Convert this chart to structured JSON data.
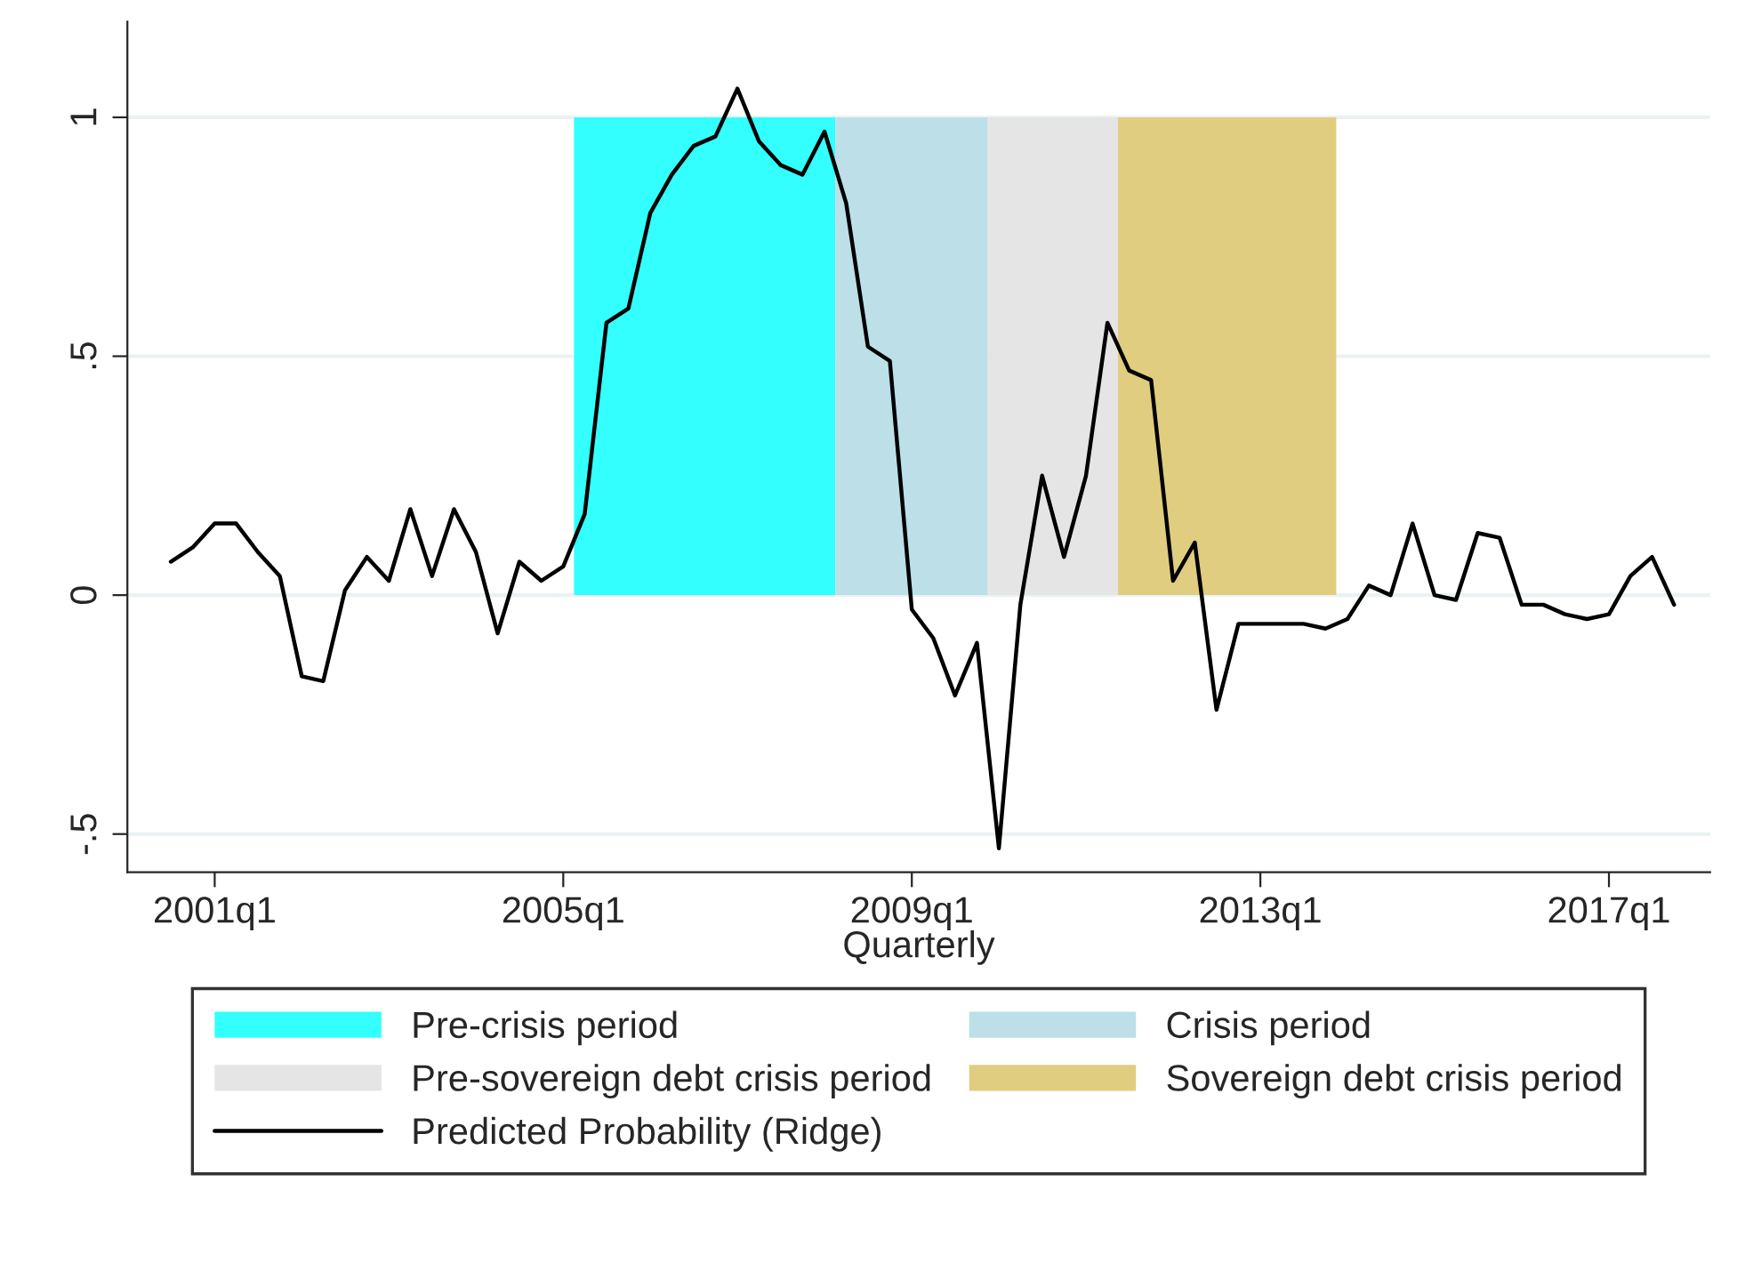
{
  "chart_data": {
    "type": "line",
    "xlabel": "Quarterly",
    "xlim": [
      "2000-01",
      "2018-03"
    ],
    "xticks": [
      {
        "value": "2001-01",
        "label": "2001q1"
      },
      {
        "value": "2005-01",
        "label": "2005q1"
      },
      {
        "value": "2009-01",
        "label": "2009q1"
      },
      {
        "value": "2013-01",
        "label": "2013q1"
      },
      {
        "value": "2017-01",
        "label": "2017q1"
      }
    ],
    "ylim": [
      -0.58,
      1.2
    ],
    "yticks": [
      {
        "value": -0.5,
        "label": "-.5"
      },
      0,
      {
        "value": 0.5,
        "label": ".5"
      },
      1
    ],
    "grid": "y",
    "legend": "bottom",
    "series": [
      {
        "name": "Pre-crisis period",
        "type": "area",
        "color": "#33ffff",
        "x": [
          "2005-02-15",
          "2008-02-15"
        ],
        "values": [
          1,
          1
        ]
      },
      {
        "name": "Crisis period",
        "type": "area",
        "color": "#bcdfe8",
        "x": [
          "2008-02-15",
          "2009-11-15"
        ],
        "values": [
          1,
          1
        ]
      },
      {
        "name": "Pre-sovereign debt crisis period",
        "type": "area",
        "color": "#e5e5e5",
        "x": [
          "2009-11-15",
          "2011-05-15"
        ],
        "values": [
          1,
          1
        ]
      },
      {
        "name": "Sovereign debt crisis period",
        "type": "area",
        "color": "#e0cd80",
        "x": [
          "2011-05-15",
          "2013-11-15"
        ],
        "values": [
          1,
          1
        ]
      },
      {
        "name": "Predicted Probability (Ridge)",
        "color": "#000000",
        "x": [
          "2000-07",
          "2000-10",
          "2001-01",
          "2001-04",
          "2001-07",
          "2001-10",
          "2002-01",
          "2002-04",
          "2002-07",
          "2002-10",
          "2003-01",
          "2003-04",
          "2003-07",
          "2003-10",
          "2004-01",
          "2004-04",
          "2004-07",
          "2004-10",
          "2005-01",
          "2005-04",
          "2005-07",
          "2005-10",
          "2006-01",
          "2006-04",
          "2006-07",
          "2006-10",
          "2007-01",
          "2007-04",
          "2007-07",
          "2007-10",
          "2008-01",
          "2008-04",
          "2008-07",
          "2008-10",
          "2009-01",
          "2009-04",
          "2009-07",
          "2009-10",
          "2010-01",
          "2010-04",
          "2010-07",
          "2010-10",
          "2011-01",
          "2011-04",
          "2011-07",
          "2011-10",
          "2012-01",
          "2012-04",
          "2012-07",
          "2012-10",
          "2013-01",
          "2013-04",
          "2013-07",
          "2013-10",
          "2014-01",
          "2014-04",
          "2014-07",
          "2014-10",
          "2015-01",
          "2015-04",
          "2015-07",
          "2015-10",
          "2016-01",
          "2016-04",
          "2016-07",
          "2016-10",
          "2017-01",
          "2017-04",
          "2017-07",
          "2017-10"
        ],
        "values": [
          0.07,
          0.1,
          0.15,
          0.15,
          0.09,
          0.04,
          -0.17,
          -0.18,
          0.01,
          0.08,
          0.03,
          0.18,
          0.04,
          0.18,
          0.09,
          -0.08,
          0.07,
          0.03,
          0.06,
          0.17,
          0.57,
          0.6,
          0.8,
          0.88,
          0.94,
          0.96,
          1.06,
          0.95,
          0.9,
          0.88,
          0.97,
          0.82,
          0.52,
          0.49,
          -0.03,
          -0.09,
          -0.21,
          -0.1,
          -0.53,
          -0.02,
          0.25,
          0.08,
          0.25,
          0.57,
          0.47,
          0.45,
          0.03,
          0.11,
          -0.24,
          -0.06,
          -0.06,
          -0.06,
          -0.06,
          -0.07,
          -0.05,
          0.02,
          0,
          0.15,
          0,
          -0.01,
          0.13,
          0.12,
          -0.02,
          -0.02,
          -0.04,
          -0.05,
          -0.04,
          0.04,
          0.08,
          -0.02
        ]
      }
    ]
  }
}
